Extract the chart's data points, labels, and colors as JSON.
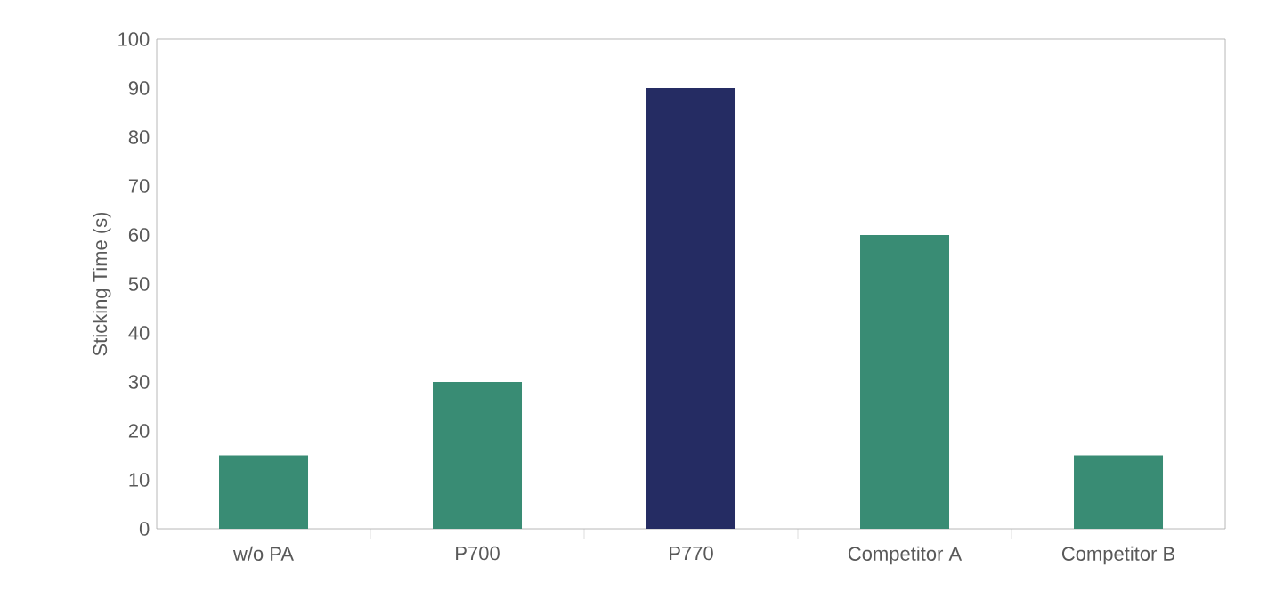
{
  "chart_data": {
    "type": "bar",
    "categories": [
      "w/o PA",
      "P700",
      "P770",
      "Competitor A",
      "Competitor B"
    ],
    "values": [
      15,
      30,
      90,
      60,
      15
    ],
    "colors": [
      "#398c74",
      "#398c74",
      "#252c63",
      "#398c74",
      "#398c74"
    ],
    "ylabel": "Sticking Time (s)",
    "ylim": [
      0,
      100
    ],
    "yticks": [
      0,
      10,
      20,
      30,
      40,
      50,
      60,
      70,
      80,
      90,
      100
    ],
    "grid": false
  }
}
